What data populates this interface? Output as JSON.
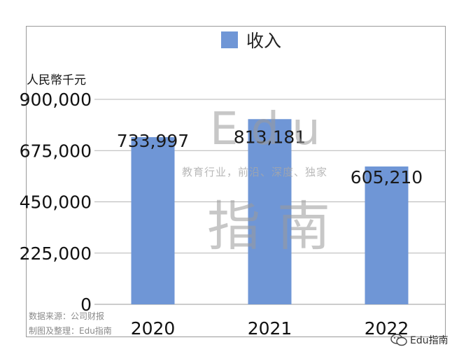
{
  "legend": {
    "label": "收入",
    "color": "#6f96d6"
  },
  "y_unit": "人民幣千元",
  "source": {
    "line1": "数据来源：公司财报",
    "line2": "制图及整理：Edu指南"
  },
  "watermark": {
    "main": "Edu",
    "tagline": "教育行业，前沿、深度、独家",
    "sub": "指南"
  },
  "wechat": {
    "label": "Edu指南",
    "icon": "wechat-icon"
  },
  "chart_data": {
    "type": "bar",
    "categories": [
      "2020",
      "2021",
      "2022"
    ],
    "series": [
      {
        "name": "收入",
        "values": [
          733997,
          813181,
          605210
        ]
      }
    ],
    "data_labels": [
      "733,997",
      "813,181",
      "605,210"
    ],
    "yticks": [
      "0",
      "225,000",
      "450,000",
      "675,000",
      "900,000"
    ],
    "ytick_values": [
      0,
      225000,
      450000,
      675000,
      900000
    ],
    "ylim": [
      0,
      900000
    ],
    "ylabel": "人民幣千元",
    "grid": true,
    "legend": "top-center",
    "bar_color": "#6f96d6"
  }
}
